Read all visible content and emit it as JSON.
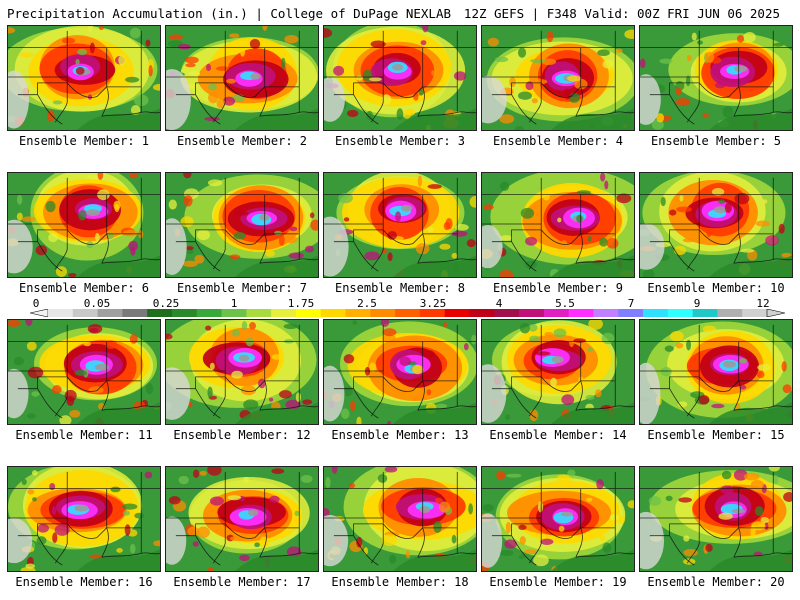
{
  "header": {
    "title_left": "Precipitation Accumulation (in.) | College of DuPage NEXLAB",
    "title_right": "12Z GEFS | F348 Valid: 00Z FRI JUN 06 2025"
  },
  "panel_label_prefix": "Ensemble Member: ",
  "members": [
    1,
    2,
    3,
    4,
    5,
    6,
    7,
    8,
    9,
    10,
    11,
    12,
    13,
    14,
    15,
    16,
    17,
    18,
    19,
    20
  ],
  "colorbar": {
    "tick_labels": [
      "0",
      "0.05",
      "0.25",
      "1",
      "1.75",
      "2.5",
      "3.25",
      "4",
      "5.5",
      "7",
      "9",
      "12"
    ],
    "colors": [
      "#e6e6e6",
      "#c8c8c8",
      "#a0a0a0",
      "#7a7a7a",
      "#1e6e1e",
      "#2a8a2a",
      "#3aa83a",
      "#6cc24a",
      "#a8dc3c",
      "#e6f03c",
      "#ffff00",
      "#ffd800",
      "#ffb000",
      "#ff8c00",
      "#ff6000",
      "#ff3a00",
      "#e80000",
      "#c00018",
      "#a0104a",
      "#c0107a",
      "#e020c0",
      "#ff30ff",
      "#c080ff",
      "#8080ff",
      "#30e0ff",
      "#30ffff",
      "#20c8c8",
      "#b0b0b0",
      "#d0d0d0"
    ]
  }
}
